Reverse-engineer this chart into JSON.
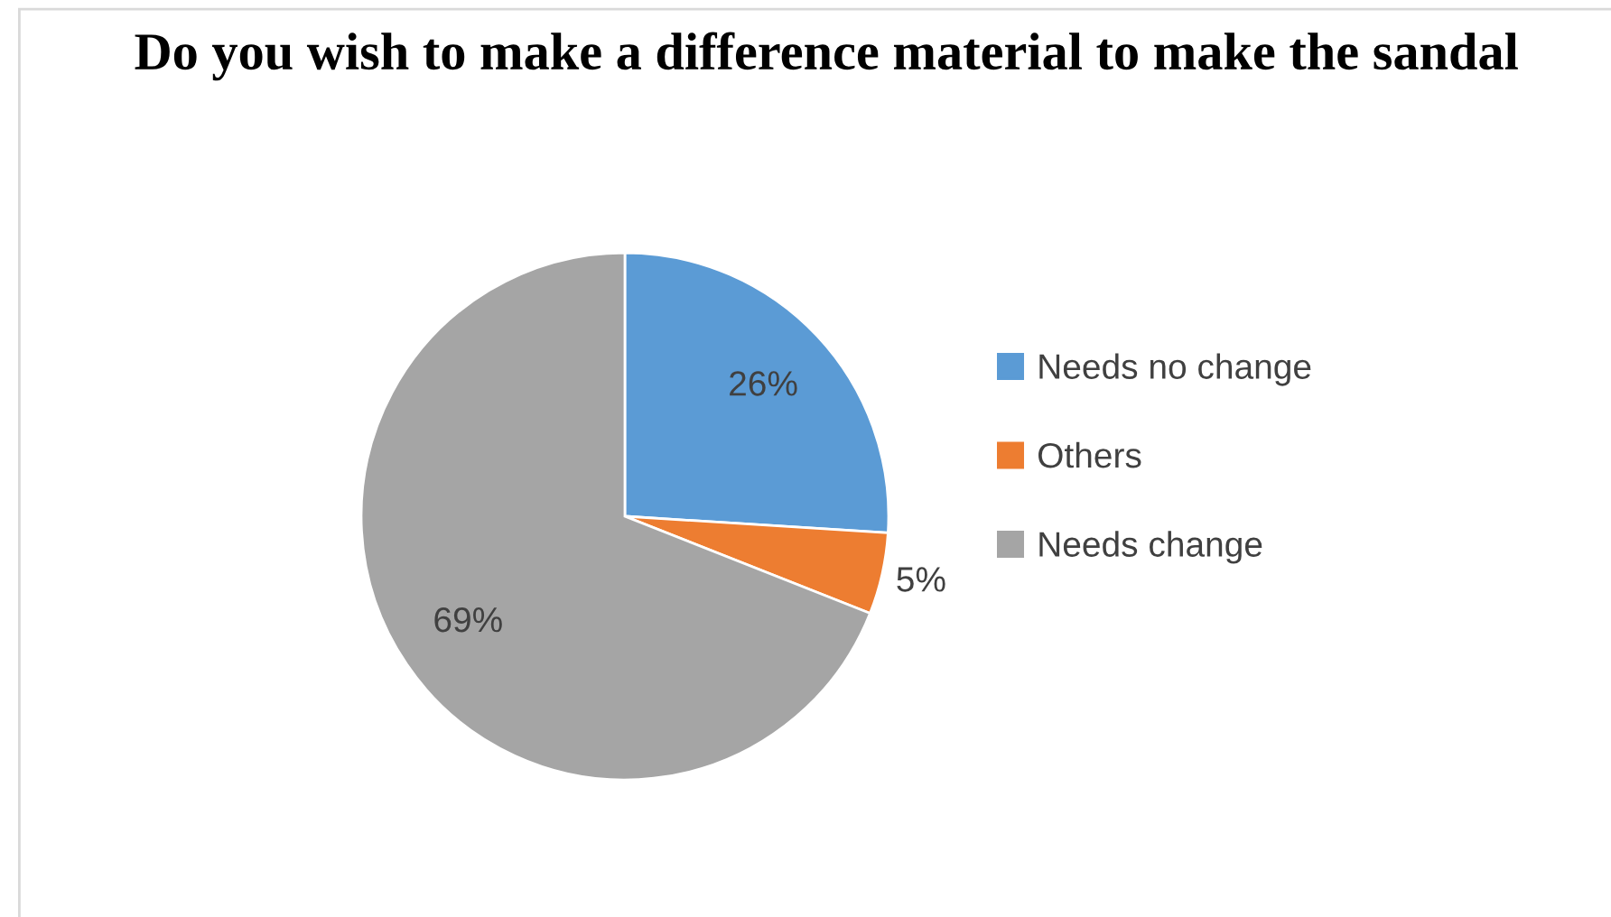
{
  "chart_data": {
    "type": "pie",
    "title": "Do you wish to make a difference material to make the sandal",
    "categories": [
      "Needs no change",
      "Others",
      "Needs change"
    ],
    "values": [
      26,
      5,
      69
    ],
    "colors": [
      "#5b9bd5",
      "#ed7d31",
      "#a5a5a5"
    ],
    "value_labels": [
      "26%",
      "5%",
      "69%"
    ],
    "legend": "right"
  }
}
